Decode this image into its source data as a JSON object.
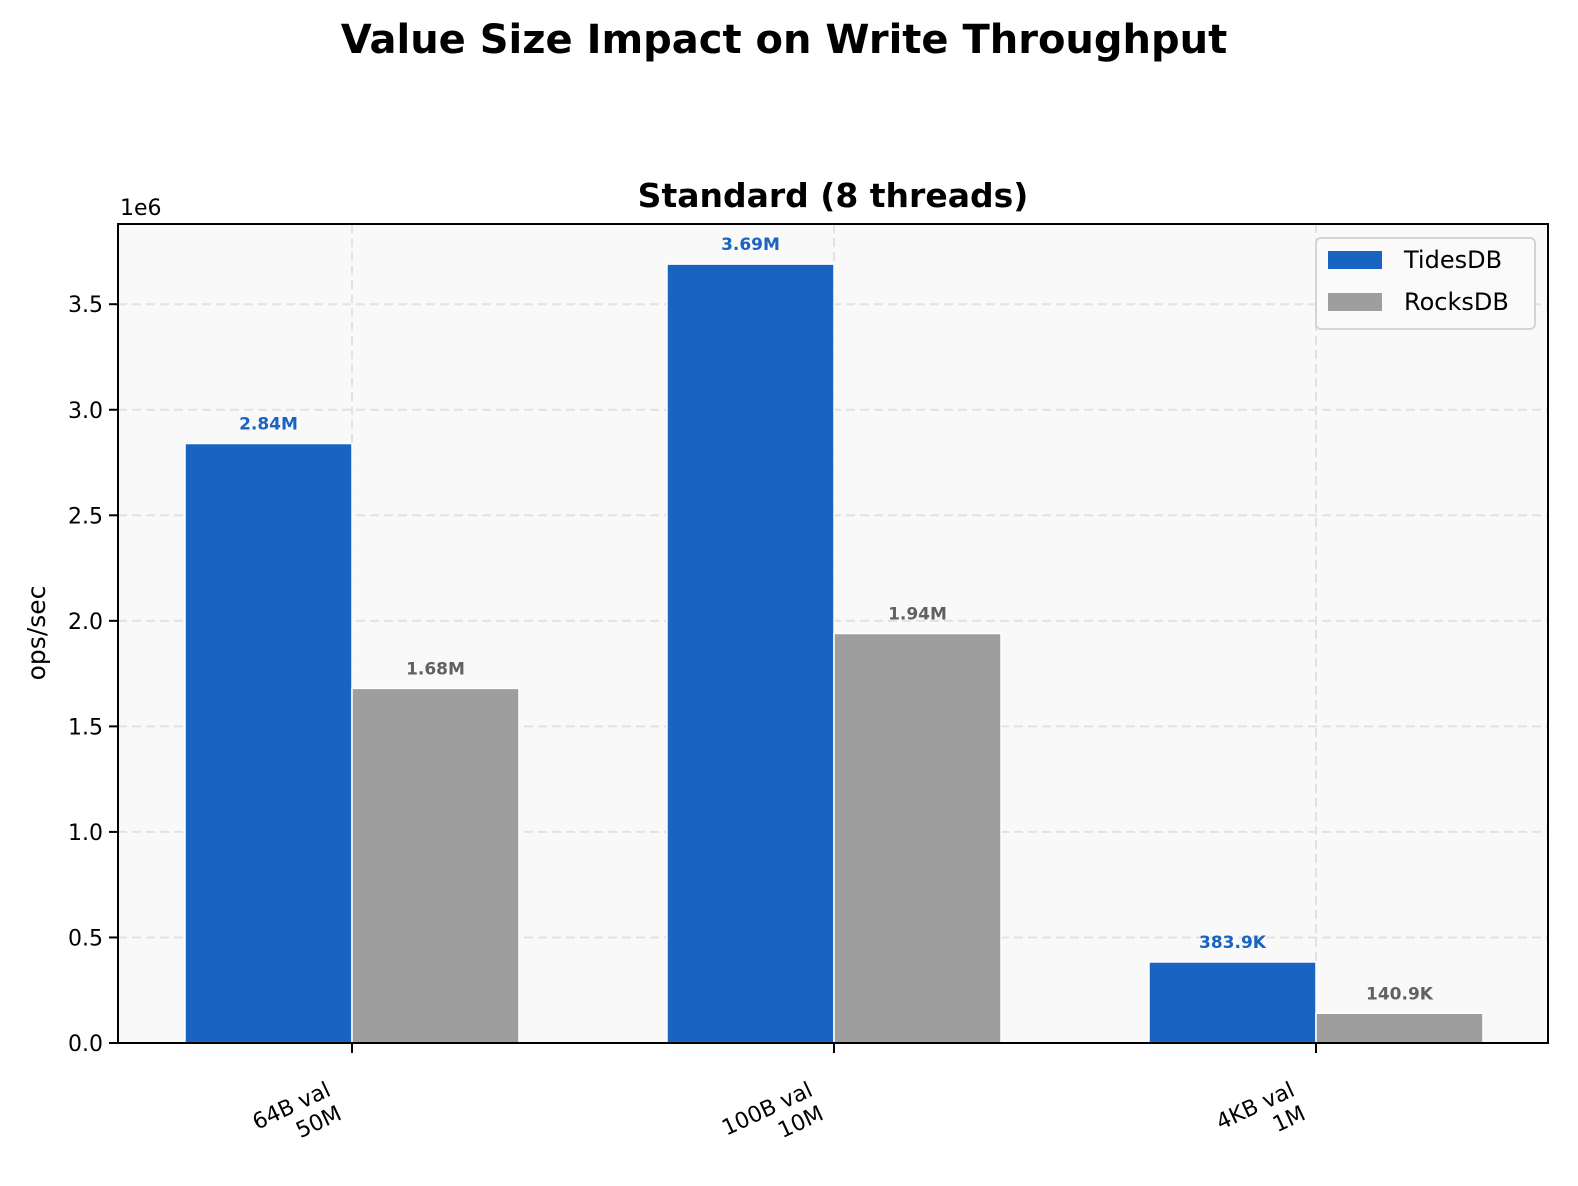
{
  "figure": {
    "suptitle": "Value Size Impact on Write Throughput"
  },
  "chart_data": {
    "type": "bar",
    "title": "Standard (8 threads)",
    "xlabel": "",
    "ylabel": "ops/sec",
    "y_offset_label": "1e6",
    "ylim": [
      0,
      3880000
    ],
    "yticks": [
      0,
      500000,
      1000000,
      1500000,
      2000000,
      2500000,
      3000000,
      3500000
    ],
    "ytick_labels": [
      "0.0",
      "0.5",
      "1.0",
      "1.5",
      "2.0",
      "2.5",
      "3.0",
      "3.5"
    ],
    "categories": [
      "64B val\n50M",
      "100B val\n10M",
      "4KB val\n1M"
    ],
    "grid": true,
    "legend_position": "upper right",
    "series": [
      {
        "name": "TidesDB",
        "color": "#1864c0",
        "values": [
          2840000,
          3690000,
          383900
        ],
        "labels": [
          "2.84M",
          "3.69M",
          "383.9K"
        ]
      },
      {
        "name": "RocksDB",
        "color": "#9e9e9e",
        "values": [
          1680000,
          1940000,
          140900
        ],
        "labels": [
          "1.68M",
          "1.94M",
          "140.9K"
        ]
      }
    ]
  }
}
